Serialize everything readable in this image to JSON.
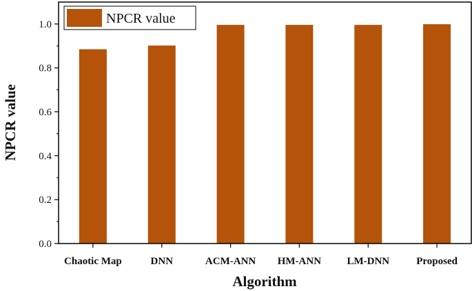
{
  "chart_data": {
    "type": "bar",
    "categories": [
      "Chaotic Map",
      "DNN",
      "ACM-ANN",
      "HM-ANN",
      "LM-DNN",
      "Proposed"
    ],
    "series": [
      {
        "name": "NPCR value",
        "values": [
          0.885,
          0.902,
          0.996,
          0.996,
          0.996,
          0.999
        ]
      }
    ],
    "xlabel": "Algorithm",
    "ylabel": "NPCR value",
    "ylim": [
      0,
      1.1
    ],
    "yticks": [
      0.0,
      0.2,
      0.4,
      0.6,
      0.8,
      1.0
    ],
    "ytick_labels": [
      "0.0",
      "0.2",
      "0.4",
      "0.6",
      "0.8",
      "1.0"
    ],
    "grid": false,
    "legend_position": "top-left",
    "colors": {
      "bar": "#B45309",
      "bar_edge": "#8a3e06",
      "axis": "#000000"
    }
  }
}
